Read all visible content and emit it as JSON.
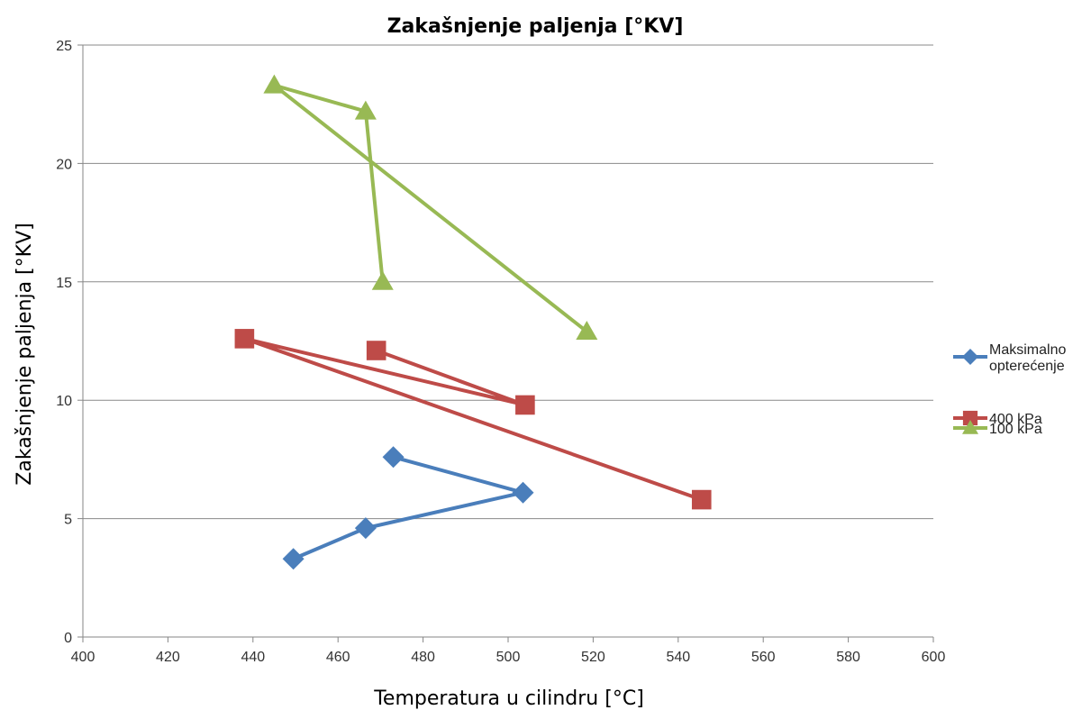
{
  "chart_data": {
    "type": "line",
    "title": "Zakašnjenje paljenja [°KV]",
    "xlabel": "Temperatura u cilindru [°C]",
    "ylabel": "Zakašnjenje paljenja [°KV]",
    "xlim": [
      400,
      600
    ],
    "ylim": [
      0,
      25
    ],
    "xticks": [
      400,
      420,
      440,
      460,
      480,
      500,
      520,
      540,
      560,
      580,
      600
    ],
    "yticks": [
      0,
      5,
      10,
      15,
      20,
      25
    ],
    "grid": "horizontal",
    "legend_position": "right",
    "series": [
      {
        "name": "Maksimalno opterećenje",
        "name_lines": [
          "Maksimalno",
          "opterećenje"
        ],
        "color": "#4a7ebb",
        "marker": "diamond",
        "points": [
          [
            449.5,
            3.3
          ],
          [
            466.5,
            4.6
          ],
          [
            503.5,
            6.1
          ],
          [
            473.0,
            7.6
          ]
        ]
      },
      {
        "name": "400 kPa",
        "name_lines": [
          "400 kPa"
        ],
        "color": "#be4b48",
        "marker": "square",
        "points": [
          [
            545.5,
            5.8
          ],
          [
            438.0,
            12.6
          ],
          [
            504.0,
            9.8
          ],
          [
            469.0,
            12.1
          ]
        ]
      },
      {
        "name": "100 kPa",
        "name_lines": [
          "100 kPa"
        ],
        "color": "#98b954",
        "marker": "triangle",
        "points": [
          [
            518.5,
            12.9
          ],
          [
            445.0,
            23.3
          ],
          [
            466.5,
            22.2
          ],
          [
            470.5,
            15.0
          ]
        ]
      }
    ]
  }
}
